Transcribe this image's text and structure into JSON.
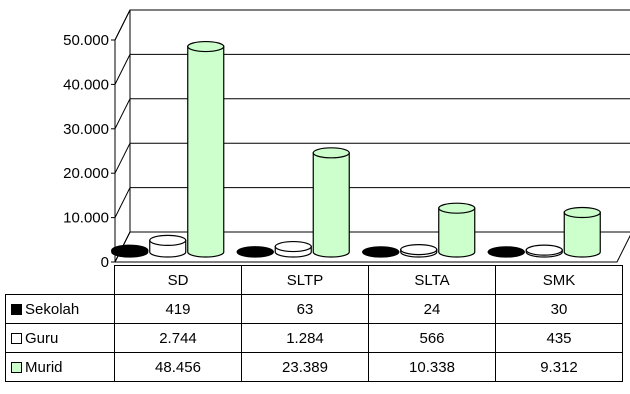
{
  "chart_data": {
    "type": "bar",
    "categories": [
      "SD",
      "SLTP",
      "SLTA",
      "SMK"
    ],
    "series": [
      {
        "name": "Sekolah",
        "values": [
          419,
          63,
          24,
          30
        ],
        "display": [
          "419",
          "63",
          "24",
          "30"
        ],
        "color": "#000000"
      },
      {
        "name": "Guru",
        "values": [
          2744,
          1284,
          566,
          435
        ],
        "display": [
          "2.744",
          "1.284",
          "566",
          "435"
        ],
        "color": "#ffffff"
      },
      {
        "name": "Murid",
        "values": [
          48456,
          23389,
          10338,
          9312
        ],
        "display": [
          "48.456",
          "23.389",
          "10.338",
          "9.312"
        ],
        "color": "#ccffcc"
      }
    ],
    "yticks": [
      0,
      10000,
      20000,
      30000,
      40000,
      50000
    ],
    "ytick_labels": [
      "0",
      "10.000",
      "20.000",
      "30.000",
      "40.000",
      "50.000"
    ],
    "ylim": [
      0,
      50000
    ],
    "grid": true,
    "legend": "data-table"
  }
}
